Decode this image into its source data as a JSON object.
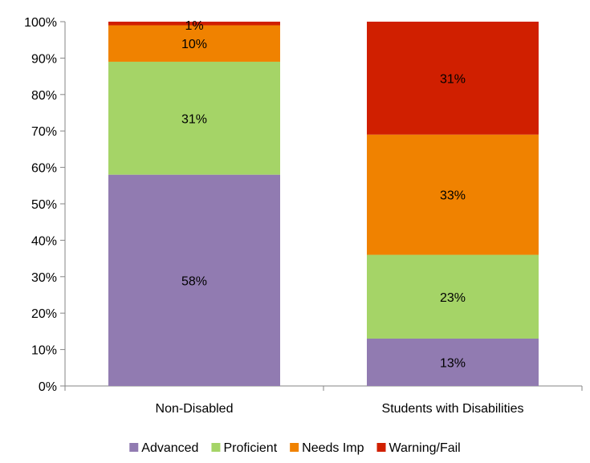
{
  "chart_data": {
    "type": "bar",
    "stacked": true,
    "categories": [
      "Non-Disabled",
      "Students with Disabilities"
    ],
    "series": [
      {
        "name": "Advanced",
        "values": [
          58,
          13
        ],
        "color": "#917bb1"
      },
      {
        "name": "Proficient",
        "values": [
          31,
          23
        ],
        "color": "#a5d467"
      },
      {
        "name": "Needs Imp",
        "values": [
          10,
          33
        ],
        "color": "#f08200"
      },
      {
        "name": "Warning/Fail",
        "values": [
          1,
          31
        ],
        "color": "#d01f00"
      }
    ],
    "value_labels": [
      [
        "58%",
        "31%",
        "10%",
        "1%"
      ],
      [
        "13%",
        "23%",
        "33%",
        "31%"
      ]
    ],
    "ylim": [
      0,
      100
    ],
    "yticks": [
      "0%",
      "10%",
      "20%",
      "30%",
      "40%",
      "50%",
      "60%",
      "70%",
      "80%",
      "90%",
      "100%"
    ],
    "grid": false,
    "legend_position": "bottom"
  }
}
